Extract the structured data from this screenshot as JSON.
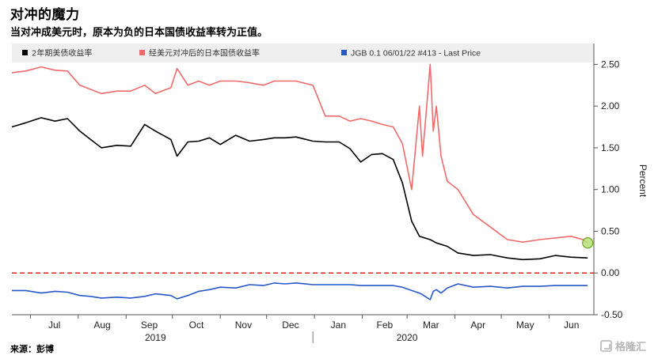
{
  "header": {
    "title": "对冲的魔力",
    "subtitle": "当对冲成美元时，原本为负的日本国债收益率转为正值。"
  },
  "footer": {
    "source": "来源：彭博",
    "watermark": "格隆汇"
  },
  "colors": {
    "us2y": "#000000",
    "hedged": "#ef6b6b",
    "jgb": "#2757c9",
    "zero_line": "#e0211b",
    "marker_fill": "#b8e07a",
    "marker_stroke": "#6fa623"
  },
  "chart_data": {
    "type": "line",
    "xlabel": "",
    "ylabel": "Percent",
    "ylim": [
      -0.5,
      2.75
    ],
    "y_ticks": [
      "2.50",
      "2.00",
      "1.50",
      "1.00",
      "0.50",
      "0.00",
      "-0.50"
    ],
    "y_tick_values": [
      2.5,
      2.0,
      1.5,
      1.0,
      0.5,
      0.0,
      -0.5
    ],
    "x_range": [
      "2019-06-19",
      "2020-06-30"
    ],
    "month_labels": [
      "Jul",
      "Aug",
      "Sep",
      "Oct",
      "Nov",
      "Dec",
      "Jan",
      "Feb",
      "Mar",
      "Apr",
      "May",
      "Jun"
    ],
    "month_dates": [
      "2019-07-01",
      "2019-08-01",
      "2019-09-01",
      "2019-10-01",
      "2019-11-01",
      "2019-12-01",
      "2020-01-01",
      "2020-02-01",
      "2020-03-01",
      "2020-04-01",
      "2020-05-01",
      "2020-06-01"
    ],
    "year_labels": [
      "2019",
      "2020"
    ],
    "reference_line": {
      "value": 0.0,
      "style": "dashed"
    },
    "legend_placement": "top",
    "grid": false,
    "series": [
      {
        "name": "2年期美债收益率",
        "x": [
          "2019-06-19",
          "2019-06-28",
          "2019-07-08",
          "2019-07-17",
          "2019-07-25",
          "2019-08-02",
          "2019-08-09",
          "2019-08-16",
          "2019-08-26",
          "2019-09-04",
          "2019-09-13",
          "2019-09-20",
          "2019-09-30",
          "2019-10-04",
          "2019-10-11",
          "2019-10-18",
          "2019-10-25",
          "2019-11-01",
          "2019-11-11",
          "2019-11-20",
          "2019-11-29",
          "2019-12-06",
          "2019-12-13",
          "2019-12-20",
          "2019-12-31",
          "2020-01-08",
          "2020-01-17",
          "2020-01-24",
          "2020-01-31",
          "2020-02-07",
          "2020-02-14",
          "2020-02-21",
          "2020-02-27",
          "2020-03-04",
          "2020-03-09",
          "2020-03-16",
          "2020-03-20",
          "2020-03-27",
          "2020-04-03",
          "2020-04-13",
          "2020-04-24",
          "2020-05-05",
          "2020-05-15",
          "2020-05-26",
          "2020-06-05",
          "2020-06-15",
          "2020-06-26"
        ],
        "values": [
          1.75,
          1.8,
          1.86,
          1.82,
          1.85,
          1.7,
          1.6,
          1.5,
          1.53,
          1.52,
          1.78,
          1.7,
          1.6,
          1.4,
          1.57,
          1.58,
          1.62,
          1.54,
          1.65,
          1.58,
          1.6,
          1.62,
          1.62,
          1.63,
          1.58,
          1.57,
          1.57,
          1.49,
          1.33,
          1.42,
          1.43,
          1.36,
          1.08,
          0.62,
          0.44,
          0.4,
          0.36,
          0.32,
          0.24,
          0.21,
          0.22,
          0.18,
          0.16,
          0.17,
          0.21,
          0.19,
          0.18
        ]
      },
      {
        "name": "经美元对冲后的日本国债收益率",
        "x": [
          "2019-06-19",
          "2019-06-28",
          "2019-07-08",
          "2019-07-17",
          "2019-07-25",
          "2019-08-02",
          "2019-08-09",
          "2019-08-16",
          "2019-08-26",
          "2019-09-04",
          "2019-09-13",
          "2019-09-20",
          "2019-09-30",
          "2019-10-04",
          "2019-10-11",
          "2019-10-18",
          "2019-10-25",
          "2019-11-01",
          "2019-11-11",
          "2019-11-20",
          "2019-11-29",
          "2019-12-06",
          "2019-12-13",
          "2019-12-20",
          "2019-12-31",
          "2020-01-08",
          "2020-01-17",
          "2020-01-24",
          "2020-01-31",
          "2020-02-07",
          "2020-02-14",
          "2020-02-21",
          "2020-02-27",
          "2020-03-04",
          "2020-03-09",
          "2020-03-11",
          "2020-03-16",
          "2020-03-18",
          "2020-03-20",
          "2020-03-23",
          "2020-03-27",
          "2020-04-03",
          "2020-04-13",
          "2020-04-24",
          "2020-05-05",
          "2020-05-15",
          "2020-05-26",
          "2020-06-05",
          "2020-06-15",
          "2020-06-23",
          "2020-06-26"
        ],
        "values": [
          2.4,
          2.42,
          2.47,
          2.43,
          2.42,
          2.25,
          2.2,
          2.15,
          2.18,
          2.18,
          2.25,
          2.15,
          2.22,
          2.45,
          2.25,
          2.3,
          2.25,
          2.3,
          2.3,
          2.28,
          2.25,
          2.3,
          2.3,
          2.3,
          2.25,
          1.88,
          1.88,
          1.82,
          1.85,
          1.82,
          1.78,
          1.75,
          1.55,
          1.0,
          2.0,
          1.4,
          2.5,
          1.7,
          2.0,
          1.4,
          1.1,
          1.0,
          0.7,
          0.55,
          0.4,
          0.37,
          0.4,
          0.42,
          0.44,
          0.4,
          0.36
        ]
      },
      {
        "name": "JGB 0.1 06/01/22 #413 - Last Price",
        "x": [
          "2019-06-19",
          "2019-06-28",
          "2019-07-08",
          "2019-07-17",
          "2019-07-25",
          "2019-08-02",
          "2019-08-09",
          "2019-08-16",
          "2019-08-26",
          "2019-09-04",
          "2019-09-13",
          "2019-09-20",
          "2019-09-30",
          "2019-10-04",
          "2019-10-11",
          "2019-10-18",
          "2019-10-25",
          "2019-11-01",
          "2019-11-11",
          "2019-11-20",
          "2019-11-29",
          "2019-12-06",
          "2019-12-13",
          "2019-12-20",
          "2019-12-31",
          "2020-01-08",
          "2020-01-17",
          "2020-01-24",
          "2020-01-31",
          "2020-02-07",
          "2020-02-14",
          "2020-02-21",
          "2020-02-27",
          "2020-03-04",
          "2020-03-09",
          "2020-03-11",
          "2020-03-16",
          "2020-03-18",
          "2020-03-20",
          "2020-03-23",
          "2020-03-27",
          "2020-04-03",
          "2020-04-13",
          "2020-04-24",
          "2020-05-05",
          "2020-05-15",
          "2020-05-26",
          "2020-06-05",
          "2020-06-15",
          "2020-06-26"
        ],
        "values": [
          -0.21,
          -0.21,
          -0.24,
          -0.22,
          -0.23,
          -0.27,
          -0.28,
          -0.3,
          -0.29,
          -0.3,
          -0.28,
          -0.25,
          -0.27,
          -0.31,
          -0.27,
          -0.22,
          -0.2,
          -0.17,
          -0.18,
          -0.14,
          -0.15,
          -0.12,
          -0.13,
          -0.12,
          -0.14,
          -0.14,
          -0.14,
          -0.14,
          -0.15,
          -0.15,
          -0.15,
          -0.15,
          -0.17,
          -0.21,
          -0.24,
          -0.26,
          -0.32,
          -0.22,
          -0.2,
          -0.24,
          -0.18,
          -0.13,
          -0.17,
          -0.16,
          -0.18,
          -0.16,
          -0.16,
          -0.15,
          -0.15,
          -0.15
        ]
      }
    ],
    "marker": {
      "date": "2020-06-26",
      "value": 0.36
    }
  }
}
